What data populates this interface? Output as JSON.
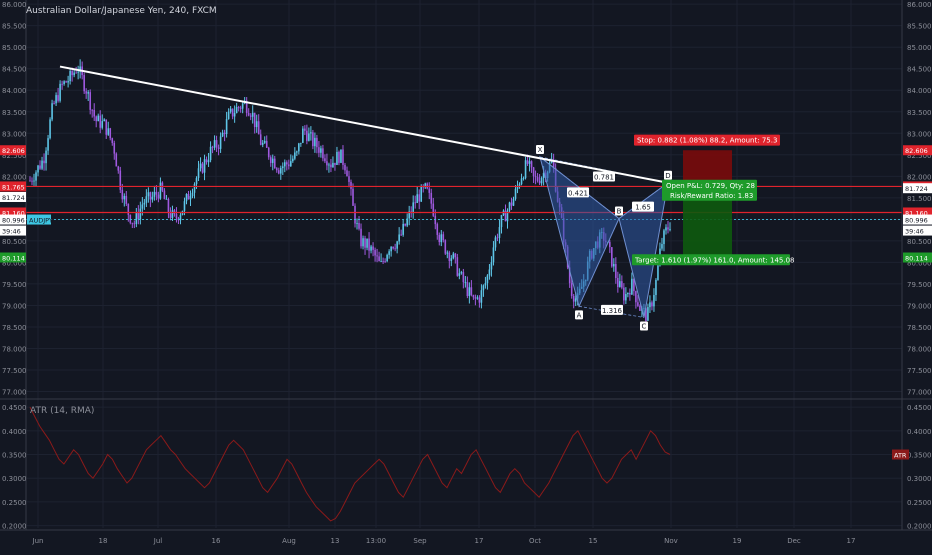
{
  "title": "Australian Dollar/Japanese Yen, 240, FXCM",
  "colors": {
    "background": "#131722",
    "grid": "#1d2230",
    "axis_text": "#8c8f99",
    "bull": "#5ec6e8",
    "bear": "#a05ae0",
    "trendline": "#ffffff",
    "hline": "#e0232c",
    "stop_fill": "#7a0b0b",
    "target_fill": "#0e5a0e",
    "pattern_fill": "#2f5aa6",
    "atr_line": "#8b1a1a",
    "current_price": "#3ec7e3"
  },
  "chart_data": [
    {
      "type": "candlestick",
      "symbol": "AUDJPY",
      "ylim": [
        76.85,
        86.05
      ],
      "x_tick_labels": [
        "Jun",
        "18",
        "Jul",
        "16",
        "Aug",
        "13",
        "13:00",
        "Sep",
        "17",
        "Oct",
        "15",
        "Nov",
        "19",
        "Dec",
        "17"
      ],
      "y_tick_labels": [
        "86.000",
        "85.500",
        "85.000",
        "84.500",
        "84.000",
        "83.500",
        "83.000",
        "82.500",
        "82.000",
        "81.500",
        "81.000",
        "80.500",
        "80.000",
        "79.500",
        "79.000",
        "78.500",
        "78.000",
        "77.500",
        "77.000"
      ],
      "path_points": [
        [
          0,
          81.9
        ],
        [
          12,
          82.4
        ],
        [
          20,
          83.6
        ],
        [
          28,
          84.1
        ],
        [
          36,
          84.3
        ],
        [
          42,
          84.55
        ],
        [
          50,
          84.0
        ],
        [
          58,
          83.3
        ],
        [
          66,
          83.2
        ],
        [
          74,
          82.7
        ],
        [
          80,
          81.8
        ],
        [
          86,
          81.2
        ],
        [
          92,
          80.9
        ],
        [
          100,
          81.4
        ],
        [
          108,
          81.5
        ],
        [
          116,
          81.7
        ],
        [
          122,
          81.2
        ],
        [
          128,
          81.0
        ],
        [
          136,
          81.3
        ],
        [
          144,
          81.8
        ],
        [
          152,
          82.2
        ],
        [
          160,
          82.6
        ],
        [
          168,
          82.8
        ],
        [
          176,
          83.4
        ],
        [
          184,
          83.6
        ],
        [
          190,
          83.7
        ],
        [
          196,
          83.5
        ],
        [
          204,
          82.8
        ],
        [
          212,
          82.5
        ],
        [
          220,
          82.2
        ],
        [
          228,
          82.3
        ],
        [
          236,
          82.5
        ],
        [
          242,
          83.1
        ],
        [
          250,
          82.8
        ],
        [
          258,
          82.6
        ],
        [
          266,
          82.3
        ],
        [
          274,
          82.5
        ],
        [
          280,
          82.2
        ],
        [
          286,
          81.2
        ],
        [
          292,
          80.5
        ],
        [
          298,
          80.4
        ],
        [
          304,
          80.2
        ],
        [
          310,
          79.9
        ],
        [
          318,
          80.4
        ],
        [
          326,
          80.5
        ],
        [
          334,
          81.0
        ],
        [
          342,
          81.5
        ],
        [
          350,
          81.7
        ],
        [
          356,
          81.3
        ],
        [
          362,
          80.6
        ],
        [
          368,
          80.3
        ],
        [
          374,
          80.1
        ],
        [
          380,
          79.7
        ],
        [
          386,
          79.4
        ],
        [
          392,
          79.1
        ],
        [
          398,
          79.2
        ],
        [
          404,
          79.6
        ],
        [
          410,
          80.4
        ],
        [
          416,
          80.9
        ],
        [
          422,
          81.2
        ],
        [
          428,
          81.5
        ],
        [
          434,
          82.0
        ],
        [
          440,
          82.3
        ],
        [
          446,
          81.9
        ],
        [
          452,
          82.0
        ],
        [
          458,
          82.2
        ],
        [
          462,
          82.35
        ],
        [
          466,
          81.6
        ],
        [
          472,
          80.6
        ],
        [
          478,
          79.4
        ],
        [
          484,
          79.1
        ],
        [
          490,
          79.6
        ],
        [
          496,
          80.2
        ],
        [
          502,
          80.5
        ],
        [
          508,
          80.6
        ],
        [
          514,
          80.1
        ],
        [
          520,
          79.5
        ],
        [
          526,
          79.2
        ],
        [
          532,
          79.5
        ],
        [
          540,
          78.9
        ],
        [
          546,
          78.75
        ],
        [
          550,
          79.1
        ],
        [
          554,
          79.6
        ],
        [
          558,
          80.4
        ],
        [
          562,
          80.7
        ],
        [
          566,
          80.9
        ]
      ],
      "price_labels": {
        "top_red": "82.606",
        "line_upper": "81.765",
        "current": "81.724",
        "line_lower": "81.160",
        "audjpy": "80.996",
        "countdown": "39:46",
        "target": "80.114"
      },
      "harmonic_points": [
        {
          "label": "X",
          "x_frac": 0.0,
          "price": 82.45
        },
        {
          "label": "A",
          "price": 78.98
        },
        {
          "label": "B",
          "price": 81.02
        },
        {
          "label": "C",
          "price": 78.72
        },
        {
          "label": "D",
          "price": 81.85
        }
      ],
      "harmonic_ratios": {
        "xb": "0.421",
        "xd": "0.781",
        "ac": "1.316",
        "bd": "1.65"
      },
      "trendline": [
        [
          84.55
        ],
        [
          81.85
        ]
      ],
      "horizontal_lines": [
        81.765,
        81.16
      ],
      "position": {
        "entry": 81.724,
        "stop": 82.606,
        "target": 80.114,
        "stop_label": "Stop: 0.882 (1.08%) 88.2, Amount: 75.3",
        "target_label": "Target: 1.610 (1.97%) 161.0, Amount: 145.08",
        "open_pnl_label": "Open P&L: 0.729, Qty: 28",
        "rr_label": "Risk/Reward Ratio: 1.83"
      },
      "current_label": "AUDJPY"
    },
    {
      "type": "line",
      "title": "ATR (14, RMA)",
      "ylim": [
        0.195,
        0.465
      ],
      "y_tick_labels": [
        "0.4500",
        "0.4000",
        "0.3500",
        "0.3000",
        "0.2500",
        "0.2000"
      ],
      "values": [
        0.45,
        0.43,
        0.41,
        0.395,
        0.38,
        0.36,
        0.34,
        0.33,
        0.345,
        0.36,
        0.35,
        0.33,
        0.31,
        0.3,
        0.315,
        0.33,
        0.35,
        0.34,
        0.32,
        0.305,
        0.29,
        0.3,
        0.32,
        0.34,
        0.36,
        0.37,
        0.38,
        0.39,
        0.375,
        0.36,
        0.35,
        0.335,
        0.32,
        0.31,
        0.3,
        0.29,
        0.28,
        0.29,
        0.31,
        0.33,
        0.35,
        0.37,
        0.38,
        0.37,
        0.36,
        0.34,
        0.32,
        0.3,
        0.28,
        0.27,
        0.285,
        0.3,
        0.32,
        0.34,
        0.33,
        0.31,
        0.29,
        0.27,
        0.255,
        0.24,
        0.23,
        0.22,
        0.21,
        0.215,
        0.23,
        0.25,
        0.27,
        0.29,
        0.3,
        0.31,
        0.32,
        0.33,
        0.34,
        0.33,
        0.31,
        0.29,
        0.27,
        0.26,
        0.28,
        0.3,
        0.32,
        0.34,
        0.35,
        0.33,
        0.31,
        0.29,
        0.28,
        0.3,
        0.32,
        0.31,
        0.33,
        0.35,
        0.36,
        0.34,
        0.32,
        0.3,
        0.28,
        0.27,
        0.29,
        0.31,
        0.32,
        0.31,
        0.29,
        0.28,
        0.27,
        0.26,
        0.275,
        0.29,
        0.31,
        0.33,
        0.35,
        0.37,
        0.39,
        0.4,
        0.38,
        0.36,
        0.34,
        0.32,
        0.3,
        0.29,
        0.3,
        0.32,
        0.34,
        0.35,
        0.36,
        0.34,
        0.36,
        0.38,
        0.4,
        0.39,
        0.37,
        0.355,
        0.35
      ],
      "last_label": "ATR"
    }
  ]
}
